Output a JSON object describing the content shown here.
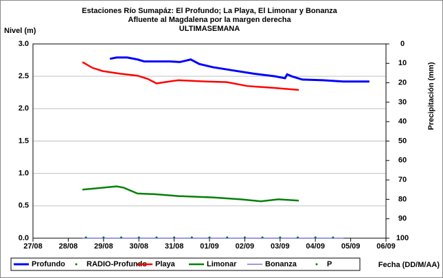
{
  "chart_data": {
    "type": "line",
    "title": "Estaciones Río Sumapáz: El Profundo; La Playa, El Limonar y Bonanza",
    "subtitle": "Afluente al Magdalena por la margen derecha",
    "subtitle2": "ULTIMASEMANA",
    "y_label": "Nivel (m)",
    "y2_label": "Precipitación (mm)",
    "x_label": "Fecha (DD/M/AA)",
    "xlim": [
      0,
      10
    ],
    "xticks": [
      {
        "value": 0,
        "label": "27/08"
      },
      {
        "value": 1,
        "label": "28/08"
      },
      {
        "value": 2,
        "label": "29/08"
      },
      {
        "value": 3,
        "label": "30/08"
      },
      {
        "value": 4,
        "label": "31/08"
      },
      {
        "value": 5,
        "label": "01/09"
      },
      {
        "value": 6,
        "label": "02/09"
      },
      {
        "value": 7,
        "label": "03/09"
      },
      {
        "value": 8,
        "label": "04/09"
      },
      {
        "value": 9,
        "label": "05/09"
      },
      {
        "value": 10,
        "label": "06/09"
      }
    ],
    "ylim": [
      0,
      3
    ],
    "yticks": [
      {
        "value": 0,
        "label": "0.0"
      },
      0.5,
      {
        "value": 1,
        "label": "1.0"
      },
      1.5,
      {
        "value": 2,
        "label": "2.0"
      },
      2.5,
      {
        "value": 3,
        "label": "3.0"
      }
    ],
    "y2lim": [
      0,
      100
    ],
    "y2_inverted": true,
    "y2ticks": [
      0,
      10,
      20,
      30,
      40,
      50,
      60,
      70,
      80,
      90,
      100
    ],
    "series": [
      {
        "name": "Profundo",
        "color": "#0000ff",
        "style": "line",
        "width": 3,
        "x": [
          2.18,
          2.37,
          2.67,
          2.96,
          3.15,
          3.44,
          3.89,
          4.16,
          4.47,
          4.71,
          5.1,
          5.68,
          6.26,
          6.85,
          7.14,
          7.2,
          7.33,
          7.63,
          8.21,
          8.79,
          9.53
        ],
        "values": [
          2.77,
          2.79,
          2.79,
          2.76,
          2.73,
          2.73,
          2.73,
          2.72,
          2.76,
          2.69,
          2.64,
          2.59,
          2.54,
          2.5,
          2.47,
          2.53,
          2.5,
          2.45,
          2.44,
          2.42,
          2.42
        ]
      },
      {
        "name": "RADIO-Profundo",
        "color": "#008000",
        "style": "dots",
        "x": [
          1.5,
          2,
          2.5,
          3,
          3.5,
          4,
          4.5,
          5,
          5.5,
          6,
          6.5,
          7,
          7.5,
          8,
          8.5
        ],
        "values": [
          0,
          0,
          0,
          0,
          0,
          0,
          0,
          0,
          0,
          0,
          0,
          0,
          0,
          0,
          0
        ]
      },
      {
        "name": "Playa",
        "color": "#ff0000",
        "style": "line",
        "width": 2.5,
        "x": [
          1.4,
          1.69,
          1.98,
          2.47,
          2.96,
          3.25,
          3.5,
          3.74,
          4.12,
          4.9,
          5.49,
          6.07,
          6.85,
          7.53
        ],
        "values": [
          2.72,
          2.63,
          2.58,
          2.54,
          2.51,
          2.46,
          2.39,
          2.41,
          2.44,
          2.42,
          2.41,
          2.35,
          2.32,
          2.29
        ]
      },
      {
        "name": "Limonar",
        "color": "#008000",
        "style": "line",
        "width": 2.5,
        "x": [
          1.4,
          2.37,
          2.57,
          2.96,
          3.44,
          4.12,
          5.1,
          5.88,
          6.46,
          6.95,
          7.53
        ],
        "values": [
          0.75,
          0.8,
          0.78,
          0.69,
          0.68,
          0.65,
          0.63,
          0.6,
          0.57,
          0.6,
          0.58
        ]
      },
      {
        "name": "Bonanza",
        "color": "#3333cc",
        "style": "line",
        "width": 1,
        "x": [
          1.4,
          8.8
        ],
        "values": [
          0,
          0
        ]
      },
      {
        "name": "P",
        "color": "#008000",
        "style": "dots",
        "axis": "y2",
        "x": [],
        "values": []
      }
    ]
  }
}
